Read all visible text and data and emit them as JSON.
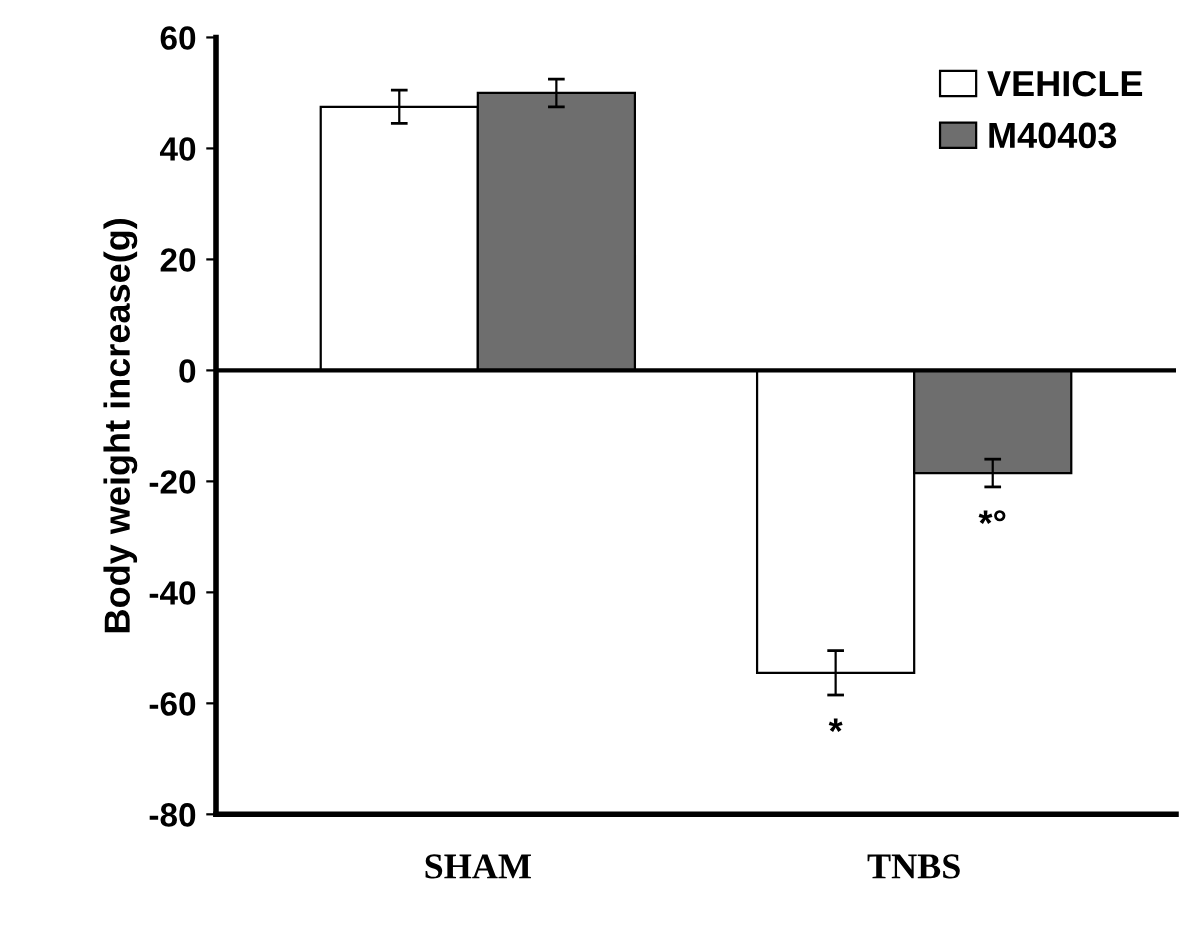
{
  "chart_data": {
    "type": "bar",
    "ylabel": "Body weight increase(g)",
    "categories": [
      "SHAM",
      "TNBS"
    ],
    "series": [
      {
        "name": "VEHICLE",
        "color": "#ffffff",
        "values": [
          47.5,
          -54.5
        ],
        "errors": [
          3,
          4
        ]
      },
      {
        "name": "M40403",
        "color": "#6e6e6e",
        "values": [
          50,
          -18.5
        ],
        "errors": [
          2.5,
          2.5
        ]
      }
    ],
    "ylim": [
      -80,
      60
    ],
    "yticks": [
      -80,
      -60,
      -40,
      -20,
      0,
      20,
      40,
      60
    ],
    "legend": "top right",
    "ref_lines": [
      {
        "axis": "y",
        "value": 0,
        "color": "#000000"
      }
    ],
    "annotations": [
      "*",
      "*°"
    ]
  }
}
